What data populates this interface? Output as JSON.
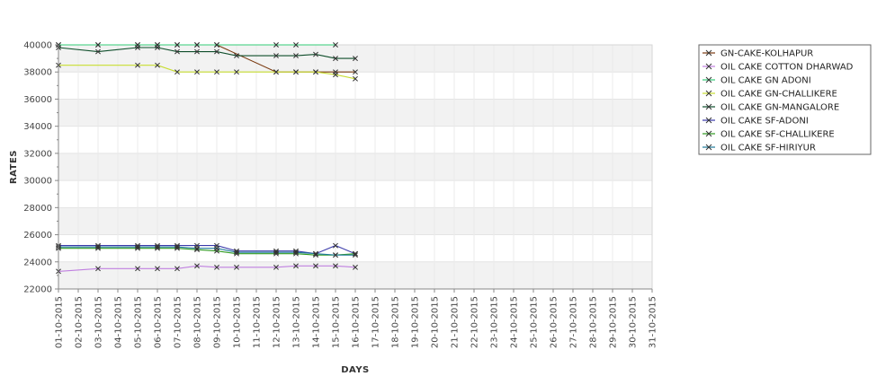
{
  "chart_data": {
    "type": "line",
    "title": "",
    "xlabel": "DAYS",
    "ylabel": "RATES",
    "ylim": [
      22000,
      40000
    ],
    "y_ticks": [
      22000,
      24000,
      26000,
      28000,
      30000,
      32000,
      34000,
      36000,
      38000,
      40000
    ],
    "categories": [
      "01-10-2015",
      "02-10-2015",
      "03-10-2015",
      "04-10-2015",
      "05-10-2015",
      "06-10-2015",
      "07-10-2015",
      "08-10-2015",
      "09-10-2015",
      "10-10-2015",
      "11-10-2015",
      "12-10-2015",
      "13-10-2015",
      "14-10-2015",
      "15-10-2015",
      "16-10-2015",
      "17-10-2015",
      "18-10-2015",
      "19-10-2015",
      "20-10-2015",
      "21-10-2015",
      "22-10-2015",
      "23-10-2015",
      "24-10-2015",
      "25-10-2015",
      "26-10-2015",
      "27-10-2015",
      "28-10-2015",
      "29-10-2015",
      "30-10-2015",
      "31-10-2015"
    ],
    "grid": "alternating horizontal bands",
    "legend_position": "right",
    "series": [
      {
        "name": "GN-CAKE-KOLHAPUR",
        "color": "#7a3a10",
        "points": [
          [
            "01-10-2015",
            40000
          ],
          [
            "03-10-2015",
            40000
          ],
          [
            "05-10-2015",
            40000
          ],
          [
            "06-10-2015",
            40000
          ],
          [
            "07-10-2015",
            40000
          ],
          [
            "08-10-2015",
            40000
          ],
          [
            "09-10-2015",
            40000
          ],
          [
            "12-10-2015",
            38000
          ],
          [
            "13-10-2015",
            38000
          ],
          [
            "14-10-2015",
            38000
          ],
          [
            "15-10-2015",
            38000
          ],
          [
            "16-10-2015",
            38000
          ]
        ]
      },
      {
        "name": "OIL CAKE COTTON DHARWAD",
        "color": "#c080e0",
        "points": [
          [
            "01-10-2015",
            23300
          ],
          [
            "03-10-2015",
            23500
          ],
          [
            "05-10-2015",
            23500
          ],
          [
            "06-10-2015",
            23500
          ],
          [
            "07-10-2015",
            23500
          ],
          [
            "08-10-2015",
            23700
          ],
          [
            "09-10-2015",
            23600
          ],
          [
            "10-10-2015",
            23600
          ],
          [
            "12-10-2015",
            23600
          ],
          [
            "13-10-2015",
            23700
          ],
          [
            "14-10-2015",
            23700
          ],
          [
            "15-10-2015",
            23700
          ],
          [
            "16-10-2015",
            23600
          ]
        ]
      },
      {
        "name": "OIL CAKE GN ADONI",
        "color": "#33cc77",
        "points": [
          [
            "01-10-2015",
            40000
          ],
          [
            "03-10-2015",
            40000
          ],
          [
            "05-10-2015",
            40000
          ],
          [
            "06-10-2015",
            40000
          ],
          [
            "07-10-2015",
            40000
          ],
          [
            "08-10-2015",
            40000
          ],
          [
            "09-10-2015",
            40000
          ],
          [
            "12-10-2015",
            40000
          ],
          [
            "13-10-2015",
            40000
          ],
          [
            "15-10-2015",
            40000
          ]
        ]
      },
      {
        "name": "OIL CAKE GN-CHALLIKERE",
        "color": "#c8dd30",
        "points": [
          [
            "01-10-2015",
            38500
          ],
          [
            "05-10-2015",
            38500
          ],
          [
            "06-10-2015",
            38500
          ],
          [
            "07-10-2015",
            38000
          ],
          [
            "08-10-2015",
            38000
          ],
          [
            "09-10-2015",
            38000
          ],
          [
            "10-10-2015",
            38000
          ],
          [
            "12-10-2015",
            38000
          ],
          [
            "13-10-2015",
            38000
          ],
          [
            "14-10-2015",
            38000
          ],
          [
            "15-10-2015",
            37800
          ],
          [
            "16-10-2015",
            37500
          ]
        ]
      },
      {
        "name": "OIL CAKE GN-MANGALORE",
        "color": "#0e4d2a",
        "points": [
          [
            "01-10-2015",
            39800
          ],
          [
            "03-10-2015",
            39500
          ],
          [
            "05-10-2015",
            39800
          ],
          [
            "06-10-2015",
            39800
          ],
          [
            "07-10-2015",
            39500
          ],
          [
            "08-10-2015",
            39500
          ],
          [
            "09-10-2015",
            39500
          ],
          [
            "10-10-2015",
            39200
          ],
          [
            "12-10-2015",
            39200
          ],
          [
            "13-10-2015",
            39200
          ],
          [
            "14-10-2015",
            39300
          ],
          [
            "15-10-2015",
            39000
          ],
          [
            "16-10-2015",
            39000
          ]
        ]
      },
      {
        "name": "OIL CAKE SF-ADONI",
        "color": "#3a3aaa",
        "points": [
          [
            "01-10-2015",
            25200
          ],
          [
            "03-10-2015",
            25200
          ],
          [
            "05-10-2015",
            25200
          ],
          [
            "06-10-2015",
            25200
          ],
          [
            "07-10-2015",
            25200
          ],
          [
            "08-10-2015",
            25200
          ],
          [
            "09-10-2015",
            25200
          ],
          [
            "10-10-2015",
            24800
          ],
          [
            "12-10-2015",
            24800
          ],
          [
            "13-10-2015",
            24800
          ],
          [
            "14-10-2015",
            24600
          ],
          [
            "15-10-2015",
            25200
          ],
          [
            "16-10-2015",
            24600
          ]
        ]
      },
      {
        "name": "OIL CAKE SF-CHALLIKERE",
        "color": "#2f9a20",
        "points": [
          [
            "01-10-2015",
            25000
          ],
          [
            "03-10-2015",
            25000
          ],
          [
            "05-10-2015",
            25000
          ],
          [
            "06-10-2015",
            25000
          ],
          [
            "07-10-2015",
            25000
          ],
          [
            "08-10-2015",
            24900
          ],
          [
            "09-10-2015",
            24800
          ],
          [
            "10-10-2015",
            24600
          ],
          [
            "12-10-2015",
            24600
          ],
          [
            "13-10-2015",
            24600
          ],
          [
            "14-10-2015",
            24500
          ],
          [
            "15-10-2015",
            24500
          ],
          [
            "16-10-2015",
            24600
          ]
        ]
      },
      {
        "name": "OIL CAKE SF-HIRIYUR",
        "color": "#1f7a9a",
        "points": [
          [
            "01-10-2015",
            25100
          ],
          [
            "03-10-2015",
            25100
          ],
          [
            "05-10-2015",
            25100
          ],
          [
            "06-10-2015",
            25100
          ],
          [
            "07-10-2015",
            25100
          ],
          [
            "08-10-2015",
            25000
          ],
          [
            "09-10-2015",
            25000
          ],
          [
            "10-10-2015",
            24700
          ],
          [
            "12-10-2015",
            24700
          ],
          [
            "13-10-2015",
            24700
          ],
          [
            "14-10-2015",
            24600
          ],
          [
            "15-10-2015",
            24500
          ],
          [
            "16-10-2015",
            24500
          ]
        ]
      }
    ]
  }
}
